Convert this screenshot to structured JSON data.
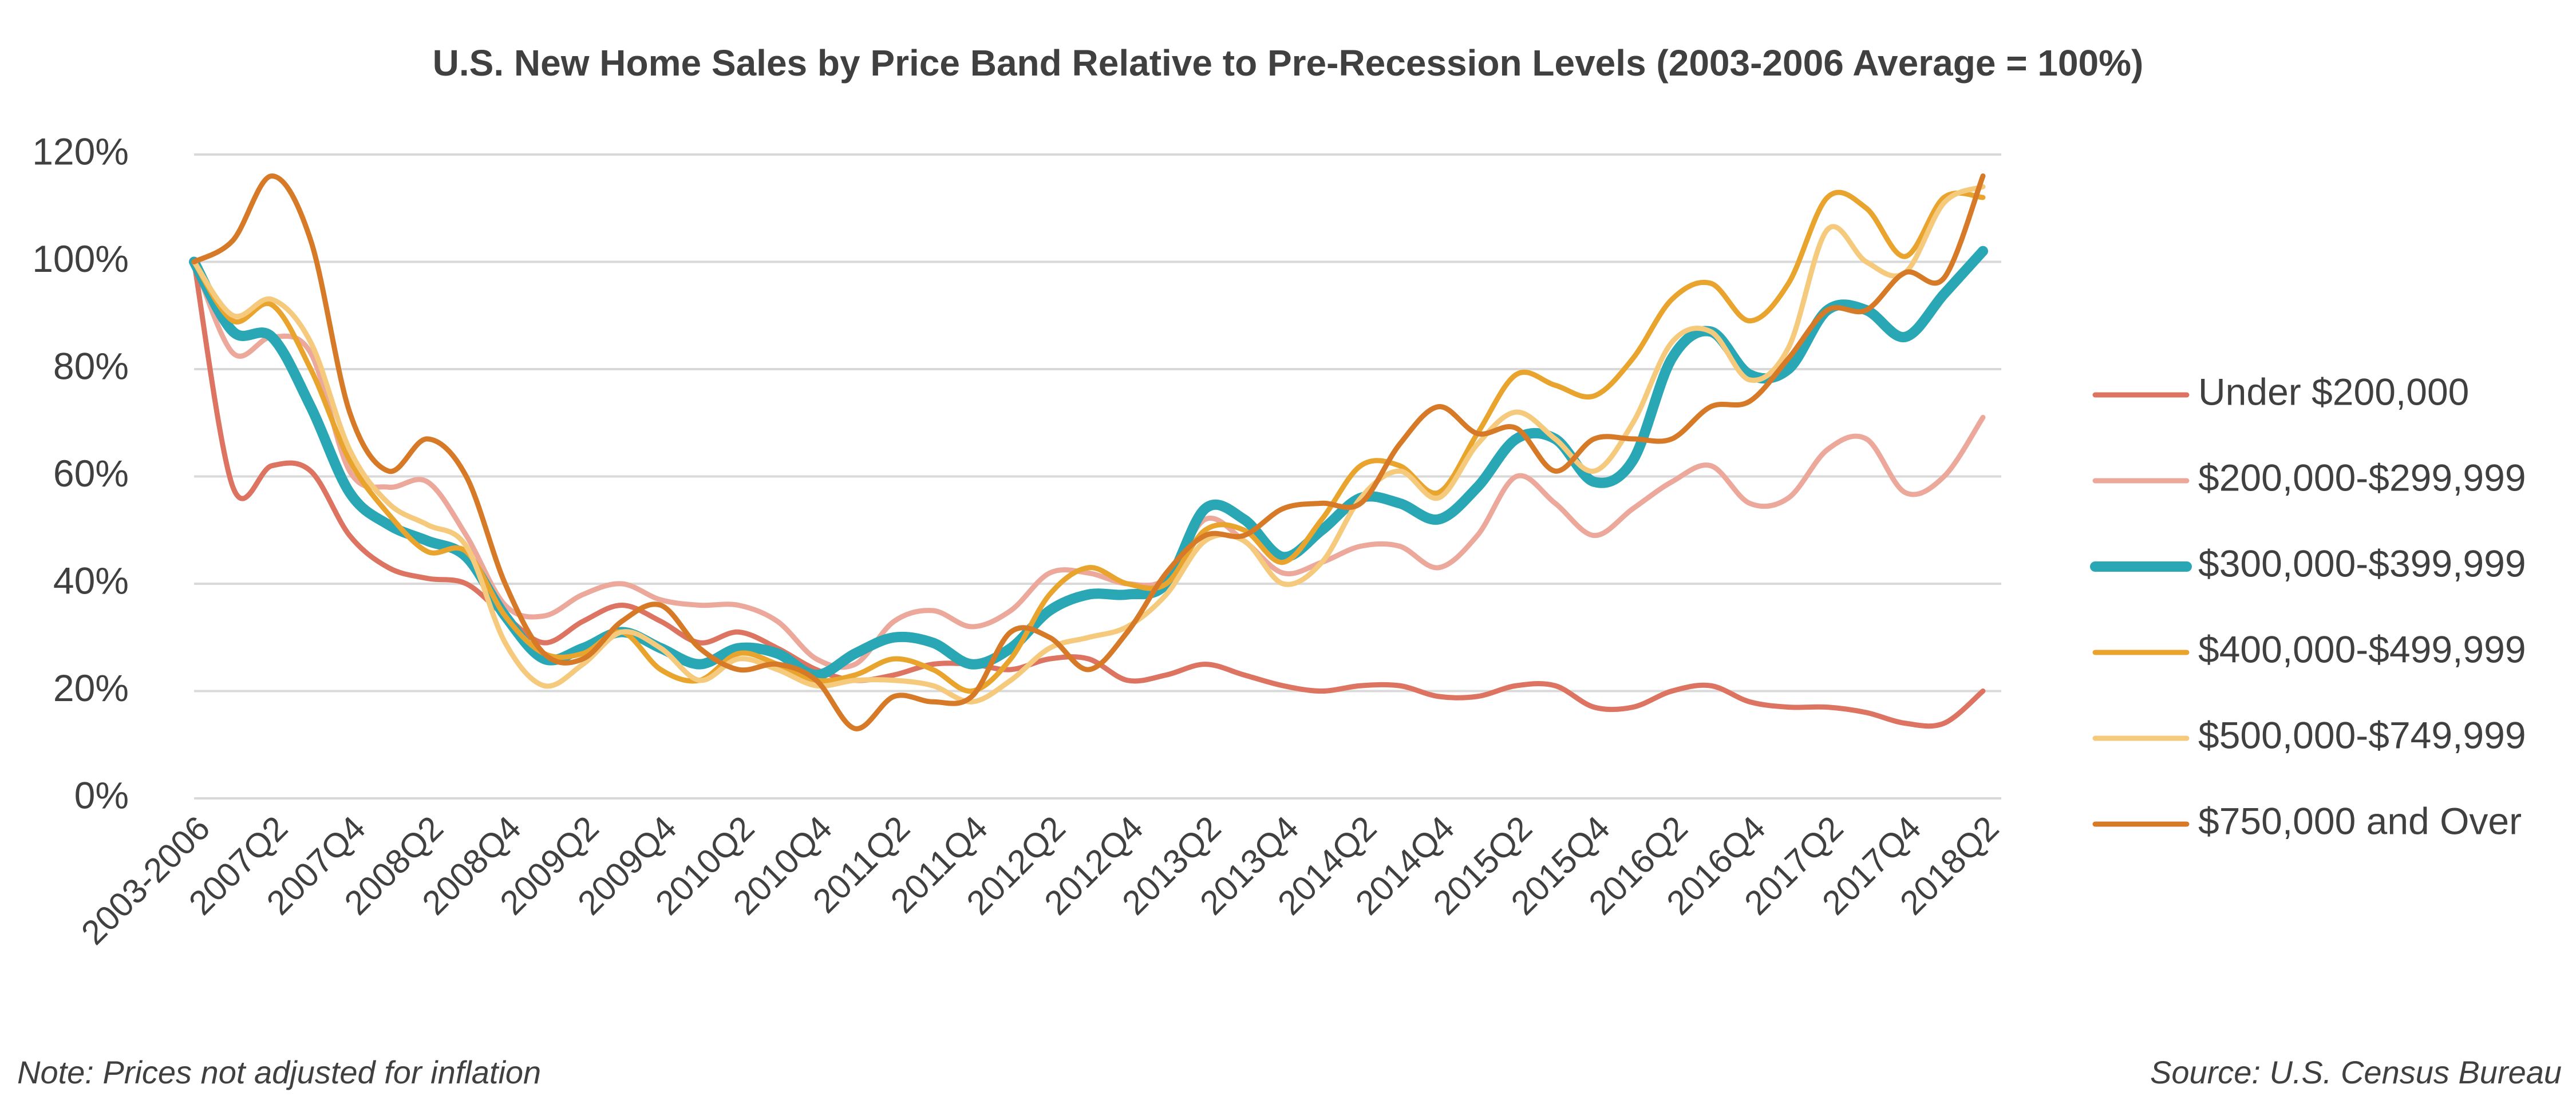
{
  "chart_data": {
    "type": "line",
    "title": "U.S. New Home Sales by Price Band Relative to Pre-Recession Levels (2003-2006 Average = 100%)",
    "note": "Note: Prices not adjusted for inflation",
    "source": "Source: U.S. Census Bureau",
    "categories": [
      "2003-2006",
      null,
      "2007Q2",
      null,
      "2007Q4",
      null,
      "2008Q2",
      null,
      "2008Q4",
      null,
      "2009Q2",
      null,
      "2009Q4",
      null,
      "2010Q2",
      null,
      "2010Q4",
      null,
      "2011Q2",
      null,
      "2011Q4",
      null,
      "2012Q2",
      null,
      "2012Q4",
      null,
      "2013Q2",
      null,
      "2013Q4",
      null,
      "2014Q2",
      null,
      "2014Q4",
      null,
      "2015Q2",
      null,
      "2015Q4",
      null,
      "2016Q2",
      null,
      "2016Q4",
      null,
      "2017Q2",
      null,
      "2017Q4",
      null,
      "2018Q2"
    ],
    "ylim": [
      0,
      120
    ],
    "yticks": [
      {
        "value": 0,
        "label": "0%"
      },
      {
        "value": 20,
        "label": "20%"
      },
      {
        "value": 40,
        "label": "40%"
      },
      {
        "value": 60,
        "label": "60%"
      },
      {
        "value": 80,
        "label": "80%"
      },
      {
        "value": 100,
        "label": "100%"
      },
      {
        "value": 120,
        "label": "120%"
      }
    ],
    "grid": true,
    "legend": "right",
    "series": [
      {
        "name": "Under $200,000",
        "color": "#dc7461",
        "values": [
          100,
          58,
          62,
          61,
          49,
          43,
          41,
          40,
          34,
          29,
          33,
          36,
          33,
          29,
          31,
          28,
          24,
          22,
          23,
          25,
          25,
          24,
          26,
          26,
          22,
          23,
          25,
          23,
          21,
          20,
          21,
          21,
          19,
          19,
          21,
          21,
          17,
          17,
          20,
          21,
          18,
          17,
          17,
          16,
          14,
          14,
          20
        ]
      },
      {
        "name": "$200,000-$299,999",
        "color": "#eba89b",
        "values": [
          100,
          83,
          86,
          83,
          61,
          58,
          59,
          49,
          36,
          34,
          38,
          40,
          37,
          36,
          36,
          33,
          26,
          25,
          33,
          35,
          32,
          35,
          42,
          42,
          40,
          41,
          52,
          48,
          42,
          44,
          47,
          47,
          43,
          49,
          60,
          55,
          49,
          54,
          59,
          62,
          55,
          56,
          65,
          67,
          57,
          60,
          71
        ]
      },
      {
        "name": "$300,000-$399,999",
        "color": "#2aa7b4",
        "values": [
          100,
          87,
          86,
          73,
          57,
          51,
          48,
          45,
          34,
          26,
          28,
          31,
          28,
          25,
          28,
          27,
          23,
          27,
          30,
          29,
          25,
          28,
          35,
          38,
          38,
          40,
          54,
          52,
          45,
          50,
          56,
          55,
          52,
          58,
          67,
          67,
          59,
          63,
          82,
          87,
          79,
          80,
          91,
          91,
          86,
          94,
          102
        ]
      },
      {
        "name": "$400,000-$499,999",
        "color": "#e8a42d",
        "values": [
          100,
          89,
          92,
          80,
          63,
          53,
          46,
          46,
          34,
          27,
          27,
          31,
          24,
          22,
          27,
          25,
          22,
          23,
          26,
          24,
          20,
          26,
          38,
          43,
          40,
          40,
          50,
          50,
          44,
          52,
          62,
          62,
          57,
          68,
          79,
          77,
          75,
          82,
          93,
          96,
          89,
          96,
          112,
          110,
          101,
          112,
          112
        ]
      },
      {
        "name": "$500,000-$749,999",
        "color": "#f5ca7c",
        "values": [
          100,
          90,
          93,
          85,
          65,
          55,
          51,
          47,
          29,
          21,
          25,
          31,
          28,
          22,
          26,
          24,
          21,
          22,
          22,
          21,
          18,
          22,
          28,
          30,
          32,
          38,
          48,
          48,
          40,
          44,
          56,
          61,
          56,
          66,
          72,
          67,
          61,
          70,
          85,
          87,
          78,
          84,
          106,
          100,
          98,
          111,
          114
        ]
      },
      {
        "name": "$750,000 and Over",
        "color": "#d67a27",
        "values": [
          100,
          104,
          116,
          104,
          72,
          61,
          67,
          60,
          40,
          27,
          26,
          33,
          36,
          28,
          24,
          25,
          22,
          13,
          19,
          18,
          19,
          31,
          30,
          24,
          31,
          42,
          49,
          49,
          54,
          55,
          55,
          66,
          73,
          68,
          69,
          61,
          67,
          67,
          67,
          73,
          74,
          82,
          91,
          91,
          98,
          97,
          116
        ]
      }
    ]
  }
}
